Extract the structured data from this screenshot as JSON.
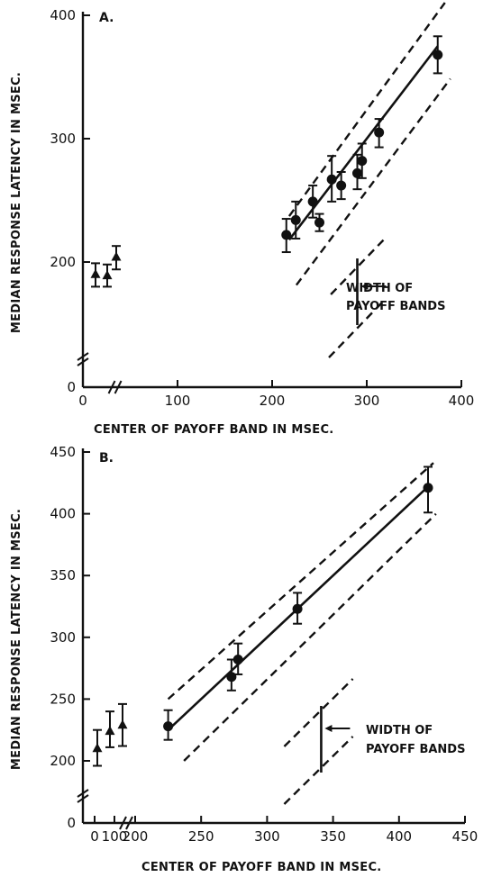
{
  "chart_data": [
    {
      "type": "scatter",
      "panel_label": "A.",
      "xlabel": "CENTER OF PAYOFF BAND IN MSEC.",
      "ylabel": "MEDIAN RESPONSE LATENCY IN MSEC.",
      "xlim": [
        0,
        400
      ],
      "ylim": [
        0,
        400
      ],
      "y_break": true,
      "x_break": true,
      "xticks": [
        "0",
        "100",
        "200",
        "300",
        "400"
      ],
      "yticks": [
        "0",
        "200",
        "300",
        "400"
      ],
      "annotation": [
        "WIDTH OF",
        "PAYOFF BANDS"
      ],
      "control_points": [
        {
          "y": 190,
          "lo": 180,
          "hi": 199
        },
        {
          "y": 189,
          "lo": 180,
          "hi": 198
        },
        {
          "y": 204,
          "lo": 194,
          "hi": 213
        }
      ],
      "points": [
        {
          "x": 215,
          "y": 222,
          "lo": 208,
          "hi": 235
        },
        {
          "x": 225,
          "y": 234,
          "lo": 219,
          "hi": 249
        },
        {
          "x": 243,
          "y": 249,
          "lo": 236,
          "hi": 262
        },
        {
          "x": 250,
          "y": 232,
          "lo": 225,
          "hi": 239
        },
        {
          "x": 263,
          "y": 267,
          "lo": 249,
          "hi": 286
        },
        {
          "x": 273,
          "y": 262,
          "lo": 251,
          "hi": 273
        },
        {
          "x": 290,
          "y": 272,
          "lo": 259,
          "hi": 287
        },
        {
          "x": 295,
          "y": 282,
          "lo": 268,
          "hi": 296
        },
        {
          "x": 313,
          "y": 305,
          "lo": 293,
          "hi": 316
        },
        {
          "x": 375,
          "y": 368,
          "lo": 353,
          "hi": 383
        }
      ],
      "fit_line": {
        "x": [
          218,
          375
        ],
        "y": [
          218,
          375
        ]
      },
      "band_half_width": 25
    },
    {
      "type": "scatter",
      "panel_label": "B.",
      "xlabel": "CENTER OF PAYOFF BAND IN MSEC.",
      "ylabel": "MEDIAN RESPONSE LATENCY IN MSEC.",
      "xlim": [
        200,
        450
      ],
      "ylim": [
        200,
        450
      ],
      "y_break": true,
      "x_break": true,
      "xticks": [
        "0",
        "100",
        "200",
        "250",
        "300",
        "350",
        "400",
        "450"
      ],
      "yticks": [
        "0",
        "200",
        "250",
        "300",
        "350",
        "400",
        "450"
      ],
      "annotation": [
        "WIDTH OF",
        "PAYOFF BANDS"
      ],
      "control_points": [
        {
          "y": 210,
          "lo": 196,
          "hi": 225
        },
        {
          "y": 224,
          "lo": 211,
          "hi": 240
        },
        {
          "y": 229,
          "lo": 212,
          "hi": 246
        }
      ],
      "points": [
        {
          "x": 225,
          "y": 228,
          "lo": 217,
          "hi": 241
        },
        {
          "x": 273,
          "y": 268,
          "lo": 257,
          "hi": 282
        },
        {
          "x": 278,
          "y": 282,
          "lo": 270,
          "hi": 295
        },
        {
          "x": 323,
          "y": 323,
          "lo": 311,
          "hi": 336
        },
        {
          "x": 422,
          "y": 421,
          "lo": 401,
          "hi": 438
        }
      ],
      "fit_line": {
        "x": [
          225,
          422
        ],
        "y": [
          225,
          422
        ]
      },
      "band_half_width": 25
    }
  ]
}
